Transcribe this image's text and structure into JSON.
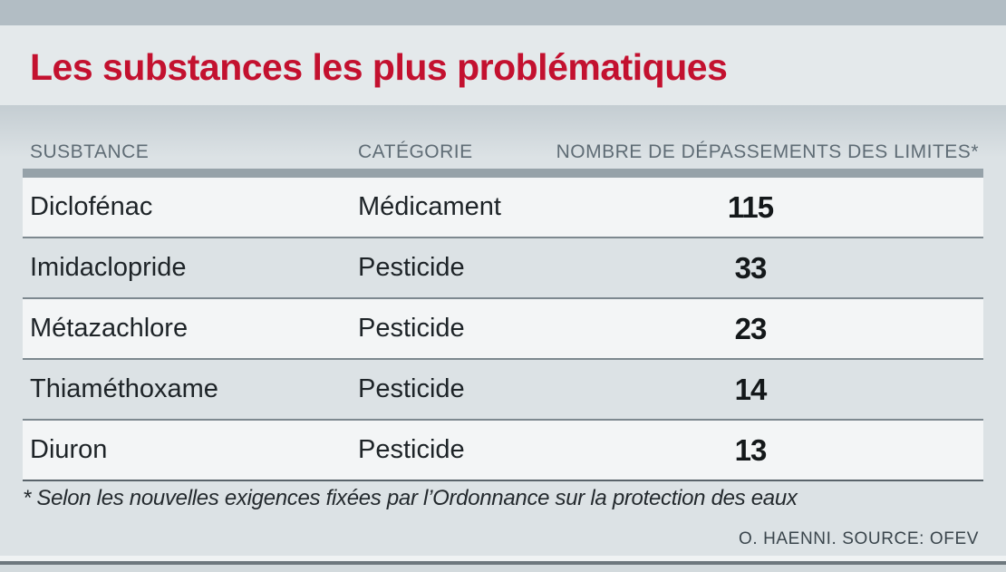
{
  "header": {
    "title": "Les substances les plus problématiques"
  },
  "table": {
    "columns": [
      "SUSBTANCE",
      "CATÉGORIE",
      "NOMBRE DE DÉPASSEMENTS DES LIMITES*"
    ],
    "rows": [
      {
        "substance": "Diclofénac",
        "category": "Médicament",
        "count": "115"
      },
      {
        "substance": "Imidaclopride",
        "category": "Pesticide",
        "count": "33"
      },
      {
        "substance": "Métazachlore",
        "category": "Pesticide",
        "count": "23"
      },
      {
        "substance": "Thiaméthoxame",
        "category": "Pesticide",
        "count": "14"
      },
      {
        "substance": "Diuron",
        "category": "Pesticide",
        "count": "13"
      }
    ]
  },
  "footnote": "* Selon les nouvelles exigences fixées par l’Ordonnance sur la protection des eaux",
  "credit": "O. HAENNI. SOURCE: OFEV",
  "colors": {
    "accent_red": "#c3112f",
    "topbar_gray": "#b2bdc4",
    "page_background": "#dce2e5",
    "light_row": "#f3f5f6",
    "header_rule": "#96a2a9",
    "row_divider": "#7d888f",
    "header_text": "#5f6c75",
    "body_text": "#1d2327"
  },
  "chart_data": {
    "type": "table",
    "title": "Les substances les plus problématiques",
    "columns": [
      "SUSBTANCE",
      "CATÉGORIE",
      "NOMBRE DE DÉPASSEMENTS DES LIMITES*"
    ],
    "rows": [
      [
        "Diclofénac",
        "Médicament",
        115
      ],
      [
        "Imidaclopride",
        "Pesticide",
        33
      ],
      [
        "Métazachlore",
        "Pesticide",
        23
      ],
      [
        "Thiaméthoxame",
        "Pesticide",
        14
      ],
      [
        "Diuron",
        "Pesticide",
        13
      ]
    ],
    "footnote": "* Selon les nouvelles exigences fixées par l’Ordonnance sur la protection des eaux",
    "credit": "O. HAENNI. SOURCE: OFEV"
  }
}
